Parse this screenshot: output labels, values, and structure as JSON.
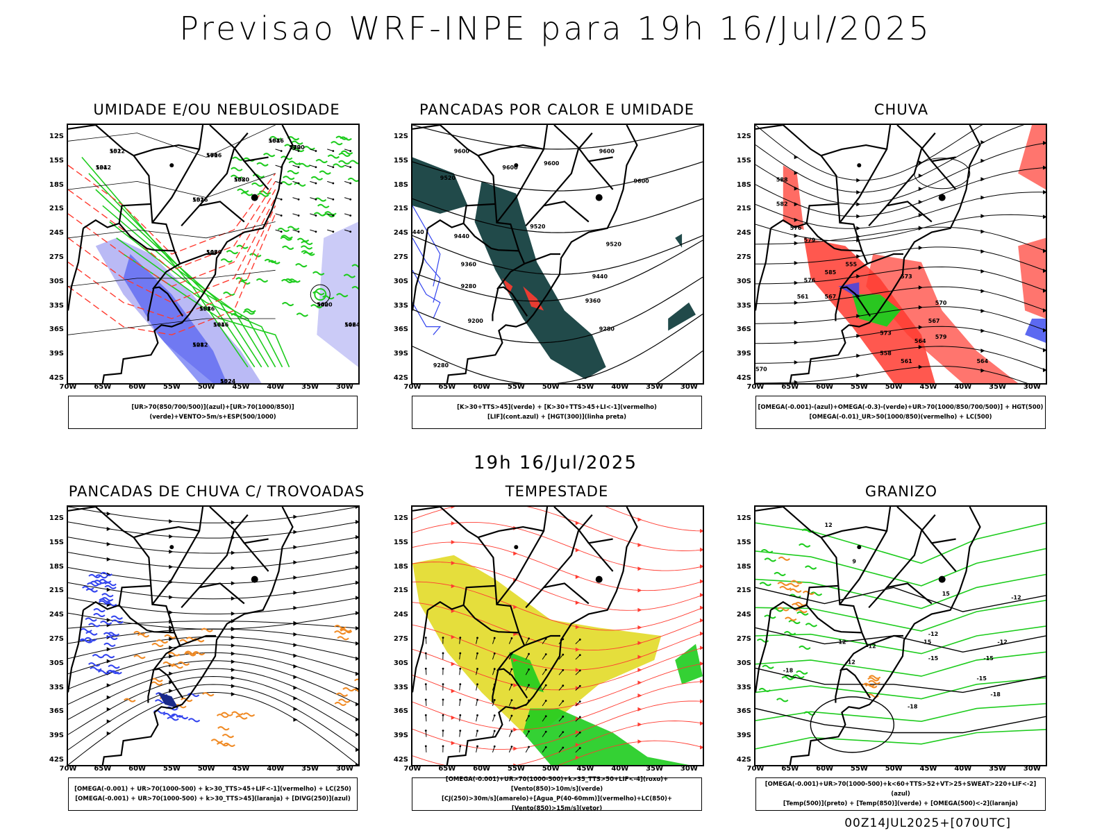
{
  "header": {
    "title": "Previsao WRF-INPE  para 19h 16/Jul/2025",
    "mid_title": "19h 16/Jul/2025",
    "footer": "00Z14JUL2025+[070UTC]"
  },
  "axes": {
    "lat_labels": [
      "12S",
      "15S",
      "18S",
      "21S",
      "24S",
      "27S",
      "30S",
      "33S",
      "36S",
      "39S",
      "42S"
    ],
    "lon_labels": [
      "70W",
      "65W",
      "60W",
      "55W",
      "50W",
      "45W",
      "40W",
      "35W",
      "30W"
    ]
  },
  "panels": [
    {
      "title": "UMIDADE E/OU NEBULOSIDADE",
      "legend": [
        "[UR>70(850/700/500)](azul)+[UR>70(1000/850)](verde)+VENTO>5m/s+ESP(500/1000)"
      ],
      "contour_labels": [
        "1012",
        "1016",
        "1016",
        "1020",
        "1020",
        "1020",
        "1012",
        "1016",
        "1016",
        "1016",
        "1020",
        "1024",
        "1024",
        "1012",
        "552",
        "570",
        "564",
        "558",
        "546",
        "540",
        "534",
        "552",
        "558",
        "564",
        "570",
        "546",
        "552",
        "528"
      ]
    },
    {
      "title": "PANCADAS POR CALOR E UMIDADE",
      "legend": [
        "[K>30+TTS>45](verde) + [K>30+TTS>45+LI<-1](vermelho)",
        "[LIF](cont.azul) + [HGT(300)](linha preta)"
      ],
      "contour_labels": [
        "9600",
        "9600",
        "9600",
        "9600",
        "9600",
        "9520",
        "9520",
        "9520",
        "9440",
        "9440",
        "9360",
        "9360",
        "9280",
        "9280",
        "9200",
        "9280",
        "440"
      ]
    },
    {
      "title": "CHUVA",
      "legend": [
        "[OMEGA(-0.001)-(azul)+OMEGA(-0.3)-(verde)+UR>70(1000/850/700/500)] + HGT(500)",
        "[OMEGA(-0.01)_UR>50(1000/850)(vermelho) + LC(500)"
      ],
      "contour_labels": [
        "588",
        "582",
        "576",
        "579",
        "573",
        "570",
        "567",
        "564",
        "561",
        "558",
        "555",
        "585",
        "576",
        "567",
        "573",
        "579",
        "564",
        "561",
        "570"
      ]
    },
    {
      "title": "PANCADAS DE CHUVA C/ TROVOADAS",
      "legend": [
        "[OMEGA(-0.001) + UR>70(1000-500) + k>30_TTS>45+LIF<-1](vermelho) + LC(250)",
        "[OMEGA(-0.001) + UR>70(1000-500) + k>30_TTS>45](laranja) + [DIVG(250)](azul)"
      ],
      "contour_labels": []
    },
    {
      "title": "TEMPESTADE",
      "legend": [
        "[OMEGA(-0.001)+UR>70(1000-500)+k>35_TTS>50+LIF<-4](roxo)+[Vento(850)>10m/s](verde)",
        "[CJ(250)>30m/s](amarelo)+[Agua_P(40-60mm)](vermelho)+LC(850)+[Vento(850)>15m/s](vetor)"
      ],
      "contour_labels": []
    },
    {
      "title": "GRANIZO",
      "legend": [
        "[OMEGA(-0.001)+UR>70(1000-500)+k<60+TTS>52+VT>25+SWEAT>220+LIF<-2](azul)",
        "[Temp(500)](preto) + [Temp(850)](verde) + [OMEGA(500)<-2](laranja)"
      ],
      "contour_labels": [
        "-12",
        "-12",
        "-15",
        "-18",
        "-15",
        "-12",
        "-12",
        "-15",
        "-12",
        "-15",
        "-18",
        "-18",
        "12",
        "9",
        "12",
        "15"
      ]
    }
  ],
  "colors": {
    "blue": "#3344ee",
    "green": "#1ecc1e",
    "red": "#ff3b30",
    "orange": "#f08a24",
    "teal": "#214a4a",
    "yellow": "#e4dc32",
    "lavender": "#a9a9f2"
  }
}
